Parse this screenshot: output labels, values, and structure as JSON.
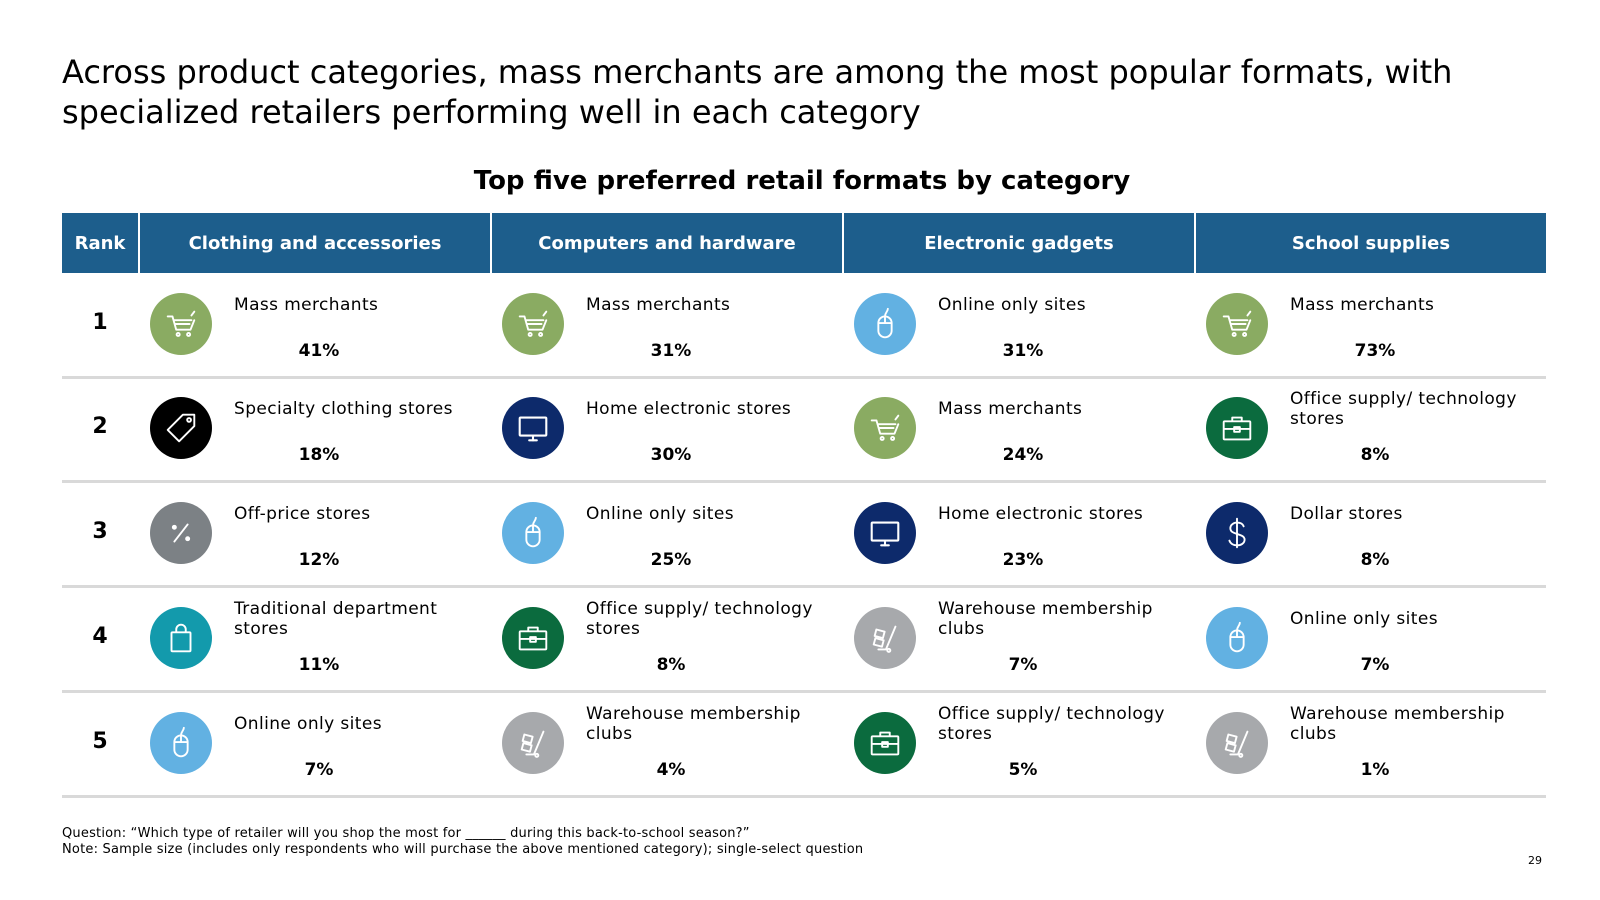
{
  "headline": "Across product categories, mass merchants are among the most popular formats, with specialized retailers performing well in each category",
  "table_title": "Top five preferred retail formats by category",
  "headers": {
    "rank": "Rank",
    "categories": [
      "Clothing and accessories",
      "Computers and hardware",
      "Electronic gadgets",
      "School supplies"
    ]
  },
  "rows": [
    {
      "rank": "1",
      "cells": [
        {
          "label": "Mass merchants",
          "pct": "41%",
          "icon": "shopping-cart-icon",
          "color": "#8aab62"
        },
        {
          "label": "Mass merchants",
          "pct": "31%",
          "icon": "shopping-cart-icon",
          "color": "#8aab62"
        },
        {
          "label": "Online only sites",
          "pct": "31%",
          "icon": "computer-mouse-icon",
          "color": "#62b1e2"
        },
        {
          "label": "Mass merchants",
          "pct": "73%",
          "icon": "shopping-cart-icon",
          "color": "#8aab62"
        }
      ]
    },
    {
      "rank": "2",
      "cells": [
        {
          "label": "Specialty clothing stores",
          "pct": "18%",
          "icon": "price-tag-icon",
          "color": "#000000"
        },
        {
          "label": "Home electronic stores",
          "pct": "30%",
          "icon": "monitor-icon",
          "color": "#0d2a6b"
        },
        {
          "label": "Mass merchants",
          "pct": "24%",
          "icon": "shopping-cart-icon",
          "color": "#8aab62"
        },
        {
          "label": "Office supply/ technology stores",
          "pct": "8%",
          "icon": "briefcase-icon",
          "color": "#0b6b3e"
        }
      ]
    },
    {
      "rank": "3",
      "cells": [
        {
          "label": "Off-price stores",
          "pct": "12%",
          "icon": "percent-icon",
          "color": "#7c8185"
        },
        {
          "label": "Online only sites",
          "pct": "25%",
          "icon": "computer-mouse-icon",
          "color": "#62b1e2"
        },
        {
          "label": "Home electronic stores",
          "pct": "23%",
          "icon": "monitor-icon",
          "color": "#0d2a6b"
        },
        {
          "label": "Dollar stores",
          "pct": "8%",
          "icon": "dollar-sign-icon",
          "color": "#0d2a6b"
        }
      ]
    },
    {
      "rank": "4",
      "cells": [
        {
          "label": "Traditional department stores",
          "pct": "11%",
          "icon": "shopping-bag-icon",
          "color": "#139aac"
        },
        {
          "label": "Office supply/ technology stores",
          "pct": "8%",
          "icon": "briefcase-icon",
          "color": "#0b6b3e"
        },
        {
          "label": "Warehouse membership clubs",
          "pct": "7%",
          "icon": "hand-truck-icon",
          "color": "#a7a9ac"
        },
        {
          "label": "Online only sites",
          "pct": "7%",
          "icon": "computer-mouse-icon",
          "color": "#62b1e2"
        }
      ]
    },
    {
      "rank": "5",
      "cells": [
        {
          "label": "Online only sites",
          "pct": "7%",
          "icon": "computer-mouse-icon",
          "color": "#62b1e2"
        },
        {
          "label": "Warehouse membership clubs",
          "pct": "4%",
          "icon": "hand-truck-icon",
          "color": "#a7a9ac"
        },
        {
          "label": "Office supply/ technology stores",
          "pct": "5%",
          "icon": "briefcase-icon",
          "color": "#0b6b3e"
        },
        {
          "label": "Warehouse membership clubs",
          "pct": "1%",
          "icon": "hand-truck-icon",
          "color": "#a7a9ac"
        }
      ]
    }
  ],
  "footnotes": {
    "question": "Question: “Which type of retailer will you shop the most for ______ during this back-to-school season?”",
    "note": "Note: Sample size (includes only respondents who will purchase the above mentioned category); single-select question"
  },
  "page_number": "29"
}
